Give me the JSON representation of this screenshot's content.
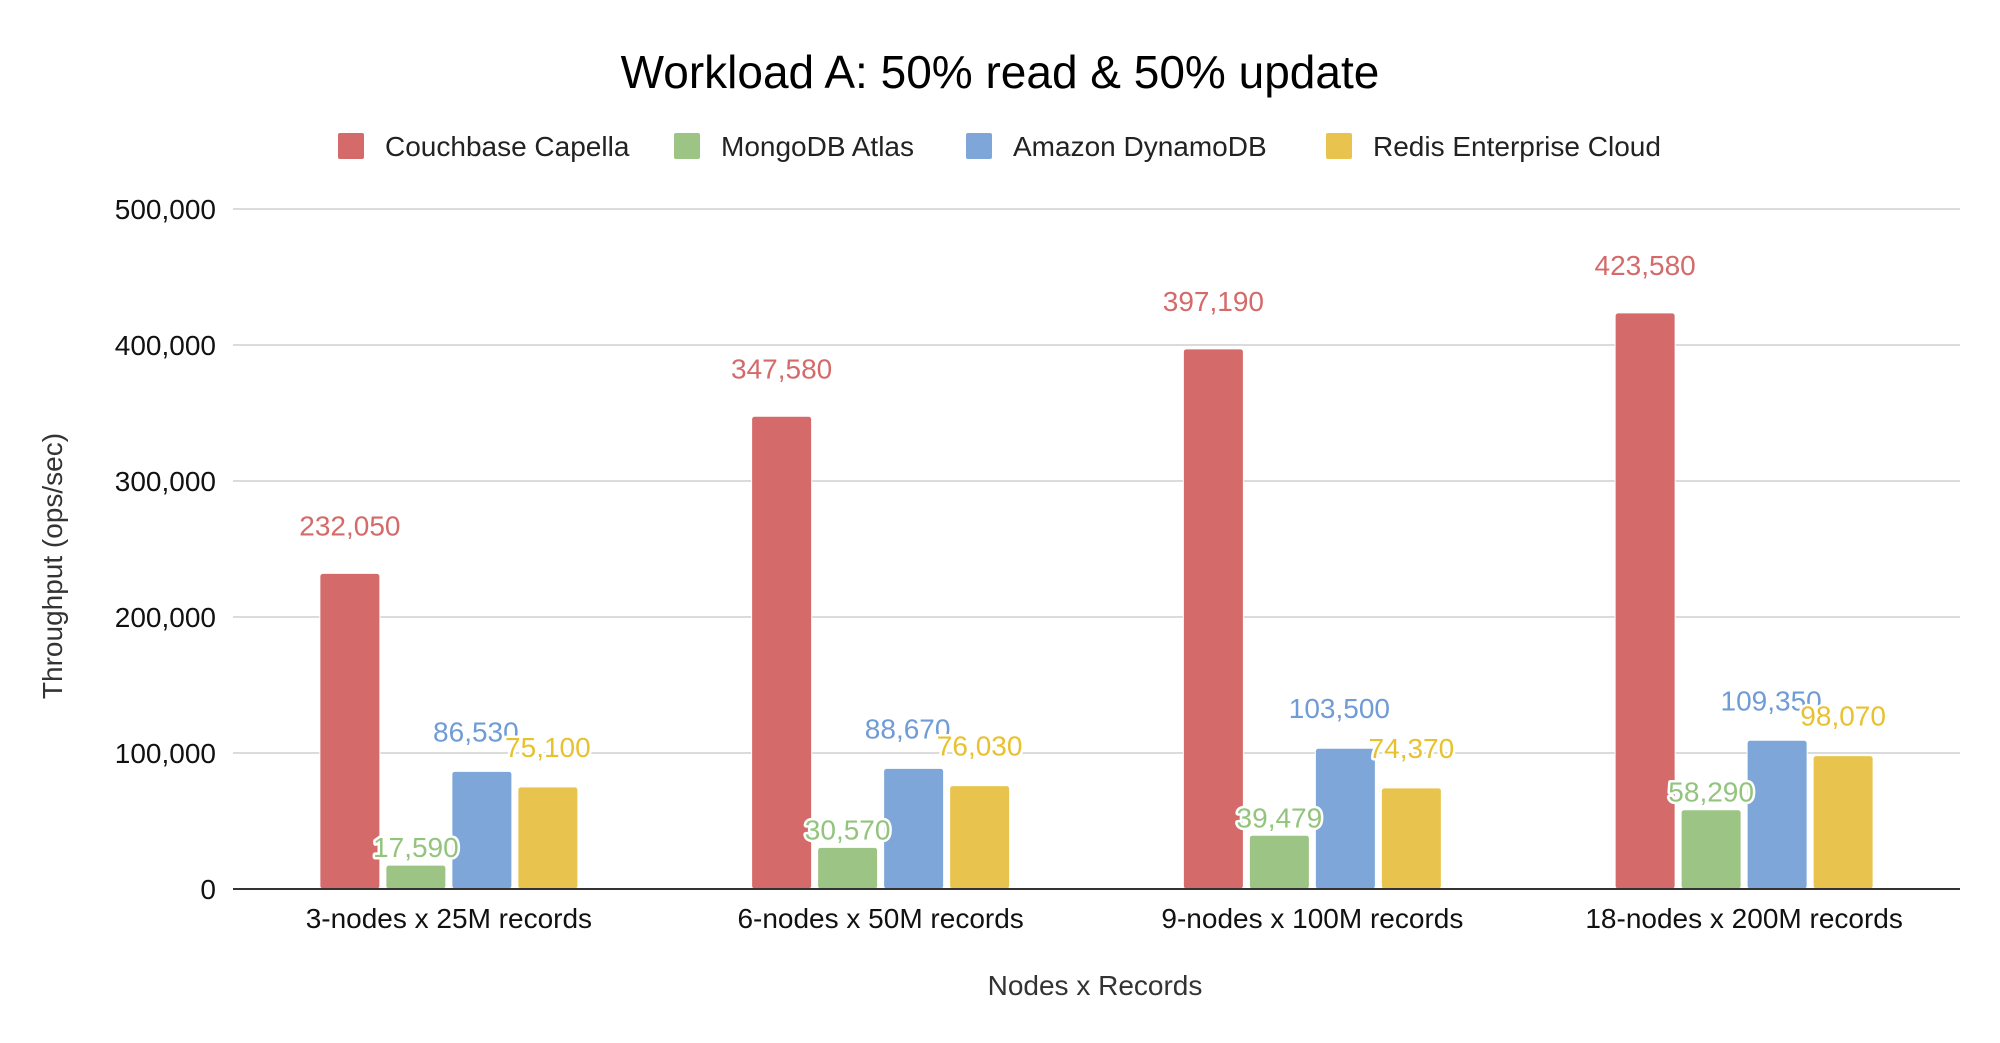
{
  "chart_data": {
    "type": "bar",
    "title": "Workload A: 50% read & 50% update",
    "xlabel": "Nodes x Records",
    "ylabel": "Throughput (ops/sec)",
    "ylim": [
      0,
      500000
    ],
    "yticks": [
      0,
      100000,
      200000,
      300000,
      400000,
      500000
    ],
    "ytick_labels": [
      "0",
      "100,000",
      "200,000",
      "300,000",
      "400,000",
      "500,000"
    ],
    "grid": true,
    "legend_position": "top",
    "categories": [
      "3-nodes x 25M records",
      "6-nodes x 50M records",
      "9-nodes x 100M records",
      "18-nodes x 200M records"
    ],
    "series": [
      {
        "name": "Couchbase Capella",
        "color": "#d46a6a",
        "label_color": "#d46a6a",
        "values": [
          232050,
          347580,
          397190,
          423580
        ],
        "value_labels": [
          "232,050",
          "347,580",
          "397,190",
          "423,580"
        ]
      },
      {
        "name": "MongoDB Atlas",
        "color": "#9cc585",
        "label_color": "#93c47d",
        "values": [
          17590,
          30570,
          39479,
          58290
        ],
        "value_labels": [
          "17,590",
          "30,570",
          "39,479",
          "58,290"
        ]
      },
      {
        "name": "Amazon DynamoDB",
        "color": "#7ea6d8",
        "label_color": "#6f9bd6",
        "values": [
          86530,
          88670,
          103500,
          109350
        ],
        "value_labels": [
          "86,530",
          "88,670",
          "103,500",
          "109,350"
        ]
      },
      {
        "name": "Redis Enterprise Cloud",
        "color": "#e8c44f",
        "label_color": "#e8c12f",
        "values": [
          75100,
          76030,
          74370,
          98070
        ],
        "value_labels": [
          "75,100",
          "76,030",
          "74,370",
          "98,070"
        ]
      }
    ]
  }
}
